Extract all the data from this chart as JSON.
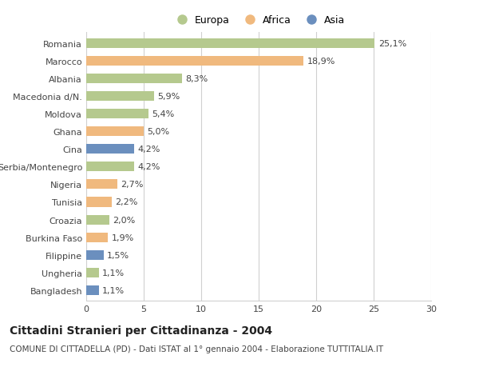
{
  "categories": [
    "Romania",
    "Marocco",
    "Albania",
    "Macedonia d/N.",
    "Moldova",
    "Ghana",
    "Cina",
    "Serbia/Montenegro",
    "Nigeria",
    "Tunisia",
    "Croazia",
    "Burkina Faso",
    "Filippine",
    "Ungheria",
    "Bangladesh"
  ],
  "values": [
    25.1,
    18.9,
    8.3,
    5.9,
    5.4,
    5.0,
    4.2,
    4.2,
    2.7,
    2.2,
    2.0,
    1.9,
    1.5,
    1.1,
    1.1
  ],
  "labels": [
    "25,1%",
    "18,9%",
    "8,3%",
    "5,9%",
    "5,4%",
    "5,0%",
    "4,2%",
    "4,2%",
    "2,7%",
    "2,2%",
    "2,0%",
    "1,9%",
    "1,5%",
    "1,1%",
    "1,1%"
  ],
  "continents": [
    "Europa",
    "Africa",
    "Europa",
    "Europa",
    "Europa",
    "Africa",
    "Asia",
    "Europa",
    "Africa",
    "Africa",
    "Europa",
    "Africa",
    "Asia",
    "Europa",
    "Asia"
  ],
  "colors": {
    "Europa": "#b5c98e",
    "Africa": "#f0b97e",
    "Asia": "#6b8fbe"
  },
  "xlim": [
    0,
    30
  ],
  "xticks": [
    0,
    5,
    10,
    15,
    20,
    25,
    30
  ],
  "title": "Cittadini Stranieri per Cittadinanza - 2004",
  "subtitle": "COMUNE DI CITTADELLA (PD) - Dati ISTAT al 1° gennaio 2004 - Elaborazione TUTTITALIA.IT",
  "background_color": "#ffffff",
  "grid_color": "#d0d0d0",
  "bar_height": 0.55,
  "label_fontsize": 8,
  "tick_fontsize": 8,
  "title_fontsize": 10,
  "subtitle_fontsize": 7.5
}
